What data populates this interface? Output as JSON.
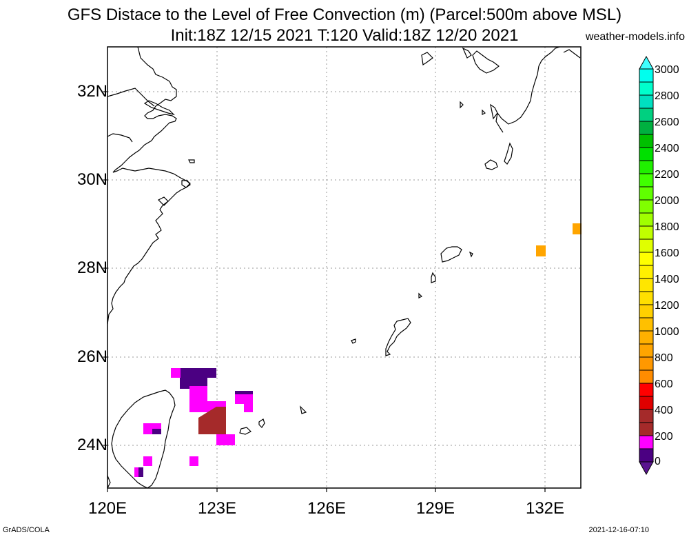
{
  "title": {
    "line1": "GFS Distace to the Level of Free Convection (m) (Parcel:500m above MSL)",
    "line2": "Init:18Z 12/15 2021 T:120 Valid:18Z 12/20 2021",
    "site": "weather-models.info"
  },
  "axes": {
    "lat_labels": [
      "32N",
      "30N",
      "28N",
      "26N",
      "24N"
    ],
    "lon_labels": [
      "120E",
      "123E",
      "126E",
      "129E",
      "132E"
    ]
  },
  "colorbar": {
    "labels": [
      "3000",
      "2800",
      "2600",
      "2400",
      "2200",
      "2000",
      "1800",
      "1600",
      "1400",
      "1200",
      "1000",
      "800",
      "600",
      "400",
      "200",
      "0"
    ],
    "colors": [
      "#5a1490",
      "#4b0082",
      "#ff00ff",
      "#a52a2a",
      "#ff0000",
      "#ff8c00",
      "#ffa500",
      "#ffc000",
      "#ffdf00",
      "#ffff00",
      "#e0ff00",
      "#b0ff00",
      "#80ff00",
      "#40ff00",
      "#00e000",
      "#00c000",
      "#00b040",
      "#00d080",
      "#00e0c0",
      "#00ffcc",
      "#00ffee",
      "#40ffff"
    ]
  },
  "footer": {
    "left": "GrADS/COLA",
    "right": "2021-12-16-07:10"
  }
}
